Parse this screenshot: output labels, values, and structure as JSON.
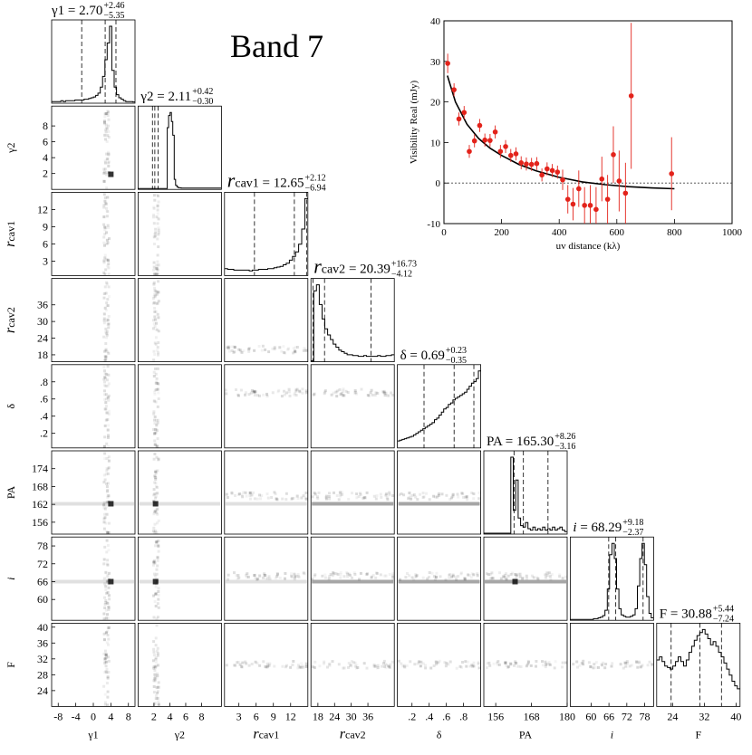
{
  "band_title": "Band 7",
  "chart_data": [
    {
      "type": "corner",
      "parameters": [
        {
          "key": "g1",
          "axis_label": "γ1",
          "title_name": "γ1",
          "median": "2.70",
          "plus": "+2.46",
          "minus": "−5.35",
          "range": [
            -9.5,
            9.5
          ],
          "ticks": [
            -8,
            -4,
            0,
            4,
            8
          ],
          "tick_labels": [
            "-8",
            "-4",
            "0",
            "4",
            "8"
          ],
          "quantiles": [
            -2.65,
            2.7,
            5.16
          ]
        },
        {
          "key": "g2",
          "axis_label": "γ2",
          "title_name": "γ2",
          "median": "2.11",
          "plus": "+0.42",
          "minus": "−0.30",
          "range": [
            0,
            10.5
          ],
          "ticks": [
            2,
            4,
            6,
            8
          ],
          "tick_labels": [
            "2",
            "4",
            "6",
            "8"
          ],
          "quantiles": [
            1.81,
            2.11,
            2.53
          ]
        },
        {
          "key": "rc1",
          "axis_label": "rcav1",
          "title_name": "rcav1",
          "median": "12.65",
          "plus": "+2.12",
          "minus": "−6.94",
          "range": [
            0.5,
            15
          ],
          "ticks": [
            3,
            6,
            9,
            12
          ],
          "tick_labels": [
            "3",
            "6",
            "9",
            "12"
          ],
          "quantiles": [
            5.71,
            12.65,
            14.77
          ]
        },
        {
          "key": "rc2",
          "axis_label": "rcav2",
          "title_name": "rcav2",
          "median": "20.39",
          "plus": "+16.73",
          "minus": "−4.12",
          "range": [
            15.5,
            45.5
          ],
          "ticks": [
            18,
            24,
            30,
            36
          ],
          "tick_labels": [
            "18",
            "24",
            "30",
            "36"
          ],
          "quantiles": [
            16.27,
            20.39,
            37.12
          ]
        },
        {
          "key": "delta",
          "axis_label": "δ",
          "title_name": "δ",
          "median": "0.69",
          "plus": "+0.23",
          "minus": "−0.35",
          "range": [
            0.03,
            1.0
          ],
          "ticks": [
            0.2,
            0.4,
            0.6,
            0.8
          ],
          "tick_labels": [
            ".2",
            ".4",
            ".6",
            ".8"
          ],
          "quantiles": [
            0.34,
            0.69,
            0.92
          ]
        },
        {
          "key": "pa",
          "axis_label": "PA",
          "title_name": "PA",
          "median": "165.30",
          "plus": "+8.26",
          "minus": "−3.16",
          "range": [
            152,
            180
          ],
          "ticks": [
            156,
            162,
            168,
            174
          ],
          "tick_labels": [
            "156",
            "162",
            "168",
            "174"
          ],
          "quantiles": [
            162.14,
            165.3,
            173.56
          ]
        },
        {
          "key": "inc",
          "axis_label": "i",
          "title_name": "i",
          "median": "68.29",
          "plus": "+9.18",
          "minus": "−2.37",
          "range": [
            53,
            81
          ],
          "ticks": [
            60,
            66,
            72,
            78
          ],
          "tick_labels": [
            "60",
            "66",
            "72",
            "78"
          ],
          "quantiles": [
            65.92,
            68.29,
            77.47
          ]
        },
        {
          "key": "flux",
          "axis_label": "F",
          "title_name": "F",
          "median": "30.88",
          "plus": "+5.44",
          "minus": "−7.24",
          "range": [
            20,
            41
          ],
          "ticks": [
            24,
            28,
            32,
            36,
            40
          ],
          "tick_labels": [
            "24",
            "28",
            "32",
            "36",
            "40"
          ],
          "quantiles": [
            23.64,
            30.88,
            36.32
          ]
        }
      ],
      "bottom_tick_labels": [
        [
          "-8",
          "-4",
          "0",
          "4",
          "8"
        ],
        [
          "2",
          "4",
          "6",
          "8"
        ],
        [
          "3",
          "6",
          "9",
          "12"
        ],
        [
          "18",
          "24",
          "30",
          "36"
        ],
        [
          ".2",
          ".4",
          ".6",
          ".8"
        ],
        [
          "156",
          "168",
          "180"
        ],
        [
          "60",
          "66",
          "72",
          "78"
        ],
        [
          "24",
          "32",
          "40"
        ]
      ],
      "bottom_tick_values": [
        [
          -8,
          -4,
          0,
          4,
          8
        ],
        [
          2,
          4,
          6,
          8
        ],
        [
          3,
          6,
          9,
          12
        ],
        [
          18,
          24,
          30,
          36
        ],
        [
          0.2,
          0.4,
          0.6,
          0.8
        ],
        [
          156,
          168,
          180
        ],
        [
          60,
          66,
          72,
          78
        ],
        [
          24,
          32,
          40
        ]
      ],
      "histograms": {
        "g1": [
          1,
          1,
          1,
          1,
          2,
          1,
          2,
          2,
          2,
          2,
          3,
          3,
          3,
          3,
          4,
          4,
          5,
          6,
          7,
          9,
          12,
          20,
          34,
          56,
          78,
          100,
          42,
          20,
          10,
          6,
          4,
          2,
          1,
          1,
          1,
          0.5
        ],
        "g2": [
          0,
          0,
          0,
          0,
          0,
          0,
          0,
          0,
          0,
          0,
          0,
          0,
          0,
          0,
          0,
          0,
          0,
          0,
          0,
          0,
          0,
          80,
          96,
          100,
          88,
          70,
          12,
          4,
          2,
          1,
          1,
          0.5,
          0.5,
          0.5,
          0.5,
          0.5,
          0.5,
          0.5,
          0.5,
          0.5,
          0.5,
          0.5,
          0.5,
          0.5,
          0.5,
          0.5,
          0.5,
          0.5,
          0.5,
          0.5,
          0.5,
          0.5,
          0.5,
          0.5,
          0.5,
          0.5,
          0.5,
          0.5,
          0.5,
          0.5
        ],
        "rc1": [
          8,
          7,
          7,
          6,
          6,
          6,
          6,
          6,
          5,
          6,
          6,
          7,
          7,
          7,
          8,
          8,
          9,
          10,
          11,
          13,
          15,
          19,
          24,
          30,
          40,
          60,
          100
        ],
        "rc2": [
          0,
          92,
          100,
          74,
          55,
          42,
          34,
          28,
          22,
          18,
          14,
          12,
          10,
          8,
          8,
          7,
          7,
          6,
          6,
          7,
          6,
          6,
          6,
          6,
          7,
          6,
          6,
          7,
          7,
          8
        ],
        "delta": [
          8,
          9,
          10,
          11,
          12,
          13,
          14,
          16,
          18,
          20,
          22,
          24,
          26,
          28,
          30,
          32,
          36,
          38,
          42,
          46,
          50,
          52,
          56,
          58,
          62,
          64,
          66,
          68,
          70,
          72,
          76,
          80,
          84,
          86,
          90,
          100
        ],
        "pa": [
          0,
          0,
          0,
          0,
          0,
          0,
          0,
          0,
          0,
          0,
          0,
          100,
          30,
          70,
          20,
          10,
          8,
          14,
          6,
          4,
          8,
          4,
          6,
          4,
          8,
          4,
          6,
          4,
          8,
          4,
          6,
          8,
          4,
          2
        ],
        "inc": [
          0,
          0,
          0,
          0,
          0,
          0,
          0,
          0,
          0,
          0,
          1,
          1,
          2,
          3,
          5,
          12,
          40,
          85,
          100,
          80,
          40,
          14,
          6,
          4,
          3,
          3,
          4,
          6,
          14,
          44,
          80,
          100,
          72,
          30,
          8,
          2
        ],
        "flux": [
          60,
          64,
          58,
          52,
          50,
          48,
          52,
          58,
          64,
          58,
          52,
          60,
          70,
          78,
          86,
          92,
          96,
          100,
          94,
          88,
          80,
          84,
          78,
          70,
          64,
          56,
          48,
          40,
          32,
          26,
          22
        ]
      },
      "density_spots": [
        {
          "row": 1,
          "col": 0,
          "x": 4.0,
          "y": 1.9,
          "level": "strong"
        },
        {
          "row": 6,
          "col": 0,
          "x": 4.0,
          "y": 66,
          "level": "strong"
        },
        {
          "row": 5,
          "col": 0,
          "x": 4.0,
          "y": 162.2,
          "level": "strong"
        },
        {
          "row": 6,
          "col": 1,
          "x": 2.2,
          "y": 66,
          "level": "strong"
        },
        {
          "row": 5,
          "col": 1,
          "x": 2.2,
          "y": 162.2,
          "level": "strong"
        },
        {
          "row": 6,
          "col": 5,
          "x": 162.5,
          "y": 66,
          "level": "strong"
        }
      ]
    },
    {
      "type": "scatter",
      "title": "",
      "xlabel": "uv distance (kλ)",
      "ylabel": "Visibility Real (mJy)",
      "xlim": [
        0,
        1000
      ],
      "ylim": [
        -10,
        40
      ],
      "xticks": [
        0,
        200,
        400,
        600,
        800,
        1000
      ],
      "yticks": [
        -10,
        0,
        10,
        20,
        30,
        40
      ],
      "grid": false,
      "zero_line": true,
      "points": [
        {
          "x": 13,
          "y": 29.5,
          "err": 2.4
        },
        {
          "x": 35,
          "y": 23.0,
          "err": 1.6
        },
        {
          "x": 52,
          "y": 15.8,
          "err": 1.6
        },
        {
          "x": 70,
          "y": 17.4,
          "err": 1.6
        },
        {
          "x": 88,
          "y": 7.8,
          "err": 1.6
        },
        {
          "x": 106,
          "y": 10.4,
          "err": 1.6
        },
        {
          "x": 124,
          "y": 14.2,
          "err": 1.6
        },
        {
          "x": 142,
          "y": 10.6,
          "err": 1.6
        },
        {
          "x": 160,
          "y": 10.5,
          "err": 1.6
        },
        {
          "x": 178,
          "y": 12.6,
          "err": 1.6
        },
        {
          "x": 196,
          "y": 7.8,
          "err": 1.6
        },
        {
          "x": 214,
          "y": 9.0,
          "err": 1.6
        },
        {
          "x": 232,
          "y": 6.8,
          "err": 1.6
        },
        {
          "x": 250,
          "y": 7.2,
          "err": 1.6
        },
        {
          "x": 268,
          "y": 5.0,
          "err": 1.6
        },
        {
          "x": 286,
          "y": 4.7,
          "err": 1.6
        },
        {
          "x": 304,
          "y": 4.6,
          "err": 1.6
        },
        {
          "x": 322,
          "y": 4.8,
          "err": 1.6
        },
        {
          "x": 340,
          "y": 2.0,
          "err": 1.6
        },
        {
          "x": 358,
          "y": 3.5,
          "err": 1.6
        },
        {
          "x": 376,
          "y": 3.1,
          "err": 1.6
        },
        {
          "x": 394,
          "y": 2.7,
          "err": 1.6
        },
        {
          "x": 412,
          "y": 0.8,
          "err": 2.5
        },
        {
          "x": 430,
          "y": -4.0,
          "err": 3.5
        },
        {
          "x": 448,
          "y": -5.2,
          "err": 4.0
        },
        {
          "x": 468,
          "y": -1.4,
          "err": 4.5
        },
        {
          "x": 488,
          "y": -5.5,
          "err": 4.5
        },
        {
          "x": 508,
          "y": -5.5,
          "err": 5.0
        },
        {
          "x": 528,
          "y": -6.5,
          "err": 5.5
        },
        {
          "x": 548,
          "y": 1.0,
          "err": 5.5
        },
        {
          "x": 568,
          "y": -4.0,
          "err": 6.0
        },
        {
          "x": 588,
          "y": 7.0,
          "err": 7.0
        },
        {
          "x": 608,
          "y": 0.5,
          "err": 7.5
        },
        {
          "x": 630,
          "y": -2.5,
          "err": 7.5
        },
        {
          "x": 650,
          "y": 21.5,
          "err": 18.0
        },
        {
          "x": 790,
          "y": 2.3,
          "err": 9.0
        }
      ],
      "model_curve": {
        "x": [
          12,
          40,
          80,
          120,
          160,
          200,
          260,
          320,
          400,
          480,
          560,
          640,
          720,
          800
        ],
        "y": [
          26.5,
          20.0,
          14.5,
          11.0,
          8.6,
          6.8,
          4.6,
          3.0,
          1.4,
          0.3,
          -0.4,
          -0.9,
          -1.2,
          -1.4
        ]
      },
      "colors": {
        "points": "#e3231b",
        "model": "#000000"
      }
    }
  ]
}
